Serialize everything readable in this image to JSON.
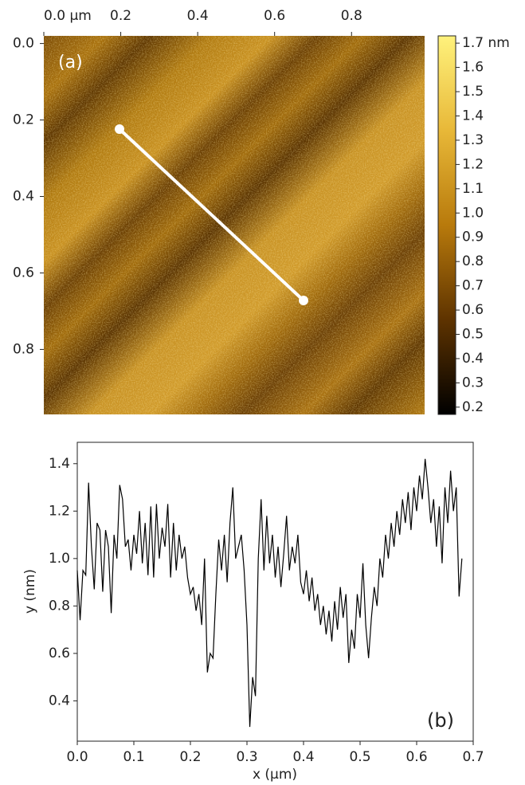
{
  "chart_data": [
    {
      "type": "image",
      "annotation": "(a)",
      "xlim": [
        0,
        0.99
      ],
      "ylim": [
        -0.02,
        0.97
      ],
      "xticks": [
        {
          "value": 0,
          "label": "0.0 μm"
        },
        0.2,
        0.4,
        0.6,
        0.8
      ],
      "yticks": [
        {
          "value": 0,
          "label": "0.0"
        },
        0.2,
        0.4,
        0.6,
        0.8
      ],
      "colorbar": {
        "clim": [
          0.17,
          1.73
        ],
        "ticks": [
          {
            "value": 1.7,
            "label": "1.7 nm"
          },
          1.6,
          1.5,
          1.4,
          1.3,
          1.2,
          1.1,
          {
            "value": 1.0,
            "label": "1.0"
          },
          0.9,
          0.8,
          0.7,
          0.6,
          0.5,
          0.4,
          0.3,
          0.2
        ],
        "colormap": [
          "#000000",
          "#5e3300",
          "#b87a0c",
          "#e8b838",
          "#fff27c"
        ]
      }
    },
    {
      "type": "line",
      "annotation": "(b)",
      "xlabel": "x (μm)",
      "ylabel": "y (nm)",
      "color": "#000000",
      "xlim": [
        0,
        0.7
      ],
      "ylim": [
        0.23,
        1.49
      ],
      "xticks": [
        {
          "value": 0,
          "label": "0.0"
        },
        0.1,
        0.2,
        0.3,
        0.4,
        0.5,
        0.6,
        0.7
      ],
      "yticks": [
        0.4,
        0.6,
        0.8,
        {
          "value": 1.0,
          "label": "1.0"
        },
        1.2,
        1.4
      ],
      "x": [
        0,
        0.005,
        0.01,
        0.015,
        0.02,
        0.025,
        0.03,
        0.035,
        0.04,
        0.045,
        0.05,
        0.055,
        0.06,
        0.065,
        0.07,
        0.075,
        0.08,
        0.085,
        0.09,
        0.095,
        0.1,
        0.105,
        0.11,
        0.115,
        0.12,
        0.125,
        0.13,
        0.135,
        0.14,
        0.145,
        0.15,
        0.155,
        0.16,
        0.165,
        0.17,
        0.175,
        0.18,
        0.185,
        0.19,
        0.195,
        0.2,
        0.205,
        0.21,
        0.215,
        0.22,
        0.225,
        0.23,
        0.235,
        0.24,
        0.245,
        0.25,
        0.255,
        0.26,
        0.265,
        0.27,
        0.275,
        0.28,
        0.285,
        0.29,
        0.295,
        0.3,
        0.305,
        0.31,
        0.315,
        0.32,
        0.325,
        0.33,
        0.335,
        0.34,
        0.345,
        0.35,
        0.355,
        0.36,
        0.365,
        0.37,
        0.375,
        0.38,
        0.385,
        0.39,
        0.395,
        0.4,
        0.405,
        0.41,
        0.415,
        0.42,
        0.425,
        0.43,
        0.435,
        0.44,
        0.445,
        0.45,
        0.455,
        0.46,
        0.465,
        0.47,
        0.475,
        0.48,
        0.485,
        0.49,
        0.495,
        0.5,
        0.505,
        0.51,
        0.515,
        0.52,
        0.525,
        0.53,
        0.535,
        0.54,
        0.545,
        0.55,
        0.555,
        0.56,
        0.565,
        0.57,
        0.575,
        0.58,
        0.585,
        0.59,
        0.595,
        0.6,
        0.605,
        0.61,
        0.615,
        0.62,
        0.625,
        0.63,
        0.635,
        0.64,
        0.645,
        0.65,
        0.655,
        0.66,
        0.665,
        0.67,
        0.675,
        0.68
      ],
      "values": [
        0.95,
        0.74,
        0.95,
        0.93,
        1.32,
        1.05,
        0.87,
        1.15,
        1.12,
        0.86,
        1.12,
        1.05,
        0.77,
        1.1,
        1.0,
        1.31,
        1.25,
        1.05,
        1.08,
        0.95,
        1.1,
        1.02,
        1.2,
        0.98,
        1.15,
        0.93,
        1.22,
        0.92,
        1.23,
        1.0,
        1.13,
        1.05,
        1.23,
        0.92,
        1.15,
        0.95,
        1.1,
        1.0,
        1.05,
        0.92,
        0.85,
        0.88,
        0.78,
        0.85,
        0.72,
        1.0,
        0.52,
        0.6,
        0.58,
        0.85,
        1.08,
        0.95,
        1.1,
        0.9,
        1.15,
        1.3,
        1.0,
        1.05,
        1.1,
        0.95,
        0.72,
        0.29,
        0.5,
        0.42,
        1.0,
        1.25,
        0.95,
        1.18,
        0.98,
        1.1,
        0.92,
        1.05,
        0.88,
        1.02,
        1.18,
        0.95,
        1.05,
        0.98,
        1.1,
        0.9,
        0.85,
        0.95,
        0.82,
        0.92,
        0.78,
        0.85,
        0.72,
        0.8,
        0.68,
        0.78,
        0.65,
        0.82,
        0.7,
        0.88,
        0.75,
        0.85,
        0.56,
        0.7,
        0.62,
        0.85,
        0.75,
        0.98,
        0.72,
        0.58,
        0.75,
        0.88,
        0.8,
        1.0,
        0.92,
        1.1,
        1.0,
        1.15,
        1.05,
        1.2,
        1.1,
        1.25,
        1.15,
        1.28,
        1.12,
        1.3,
        1.2,
        1.35,
        1.25,
        1.42,
        1.3,
        1.15,
        1.25,
        1.05,
        1.22,
        0.98,
        1.3,
        1.15,
        1.37,
        1.2,
        1.3,
        0.84,
        1.0
      ]
    }
  ]
}
